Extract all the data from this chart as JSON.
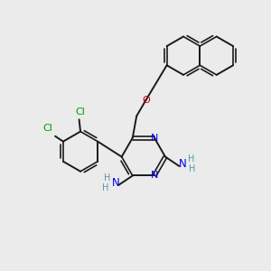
{
  "bg_color": "#ebebeb",
  "bond_color": "#1a1a1a",
  "n_color": "#0000ee",
  "o_color": "#dd0000",
  "cl_color": "#009900",
  "nh_color": "#5599aa",
  "figsize": [
    3.0,
    3.0
  ],
  "dpi": 100,
  "xlim": [
    0,
    10
  ],
  "ylim": [
    0,
    10
  ]
}
